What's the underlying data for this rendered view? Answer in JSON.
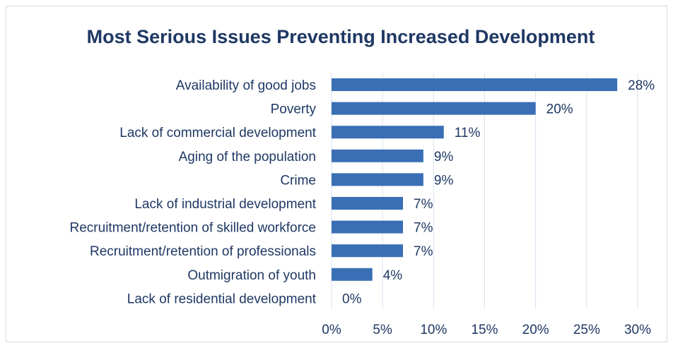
{
  "chart_data": {
    "type": "bar",
    "orientation": "horizontal",
    "title": "Most Serious Issues Preventing Increased Development",
    "xlabel": "",
    "ylabel": "",
    "categories": [
      "Availability of good jobs",
      "Poverty",
      "Lack of commercial development",
      "Aging of the population",
      "Crime",
      "Lack of industrial development",
      "Recruitment/retention of skilled workforce",
      "Recruitment/retention of professionals",
      "Outmigration of youth",
      "Lack of residential development"
    ],
    "values": [
      28,
      20,
      11,
      9,
      9,
      7,
      7,
      7,
      4,
      0
    ],
    "value_labels": [
      "28%",
      "20%",
      "11%",
      "9%",
      "9%",
      "7%",
      "7%",
      "7%",
      "4%",
      "0%"
    ],
    "xlim": [
      0,
      30
    ],
    "xticks": [
      0,
      5,
      10,
      15,
      20,
      25,
      30
    ],
    "xtick_labels": [
      "0%",
      "5%",
      "10%",
      "15%",
      "20%",
      "25%",
      "30%"
    ],
    "grid": "vertical",
    "legend": "none",
    "bar_color": "#3a6fb5",
    "text_color": "#1f3864"
  }
}
